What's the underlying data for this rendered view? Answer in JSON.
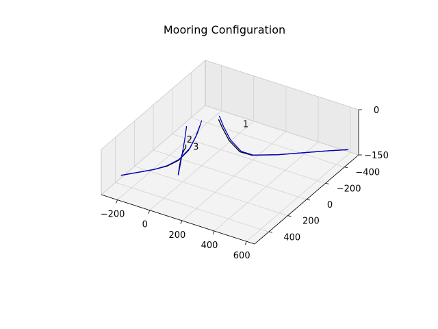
{
  "chart_data": {
    "type": "line",
    "projection": "3d",
    "title": "Mooring Configuration",
    "xlabel": "",
    "ylabel": "",
    "zlabel": "",
    "xlim": [
      -300,
      650
    ],
    "ylim": [
      -550,
      550
    ],
    "zlim": [
      -150,
      0
    ],
    "x_ticks": [
      -200,
      0,
      200,
      400,
      600
    ],
    "y_ticks": [
      -400,
      -200,
      0,
      200,
      400
    ],
    "z_ticks": [
      -150,
      0
    ],
    "x_tick_labels": [
      "−200",
      "0",
      "200",
      "400",
      "600"
    ],
    "y_tick_labels": [
      "−400",
      "−200",
      "0",
      "200",
      "400"
    ],
    "z_tick_labels": [
      "−150",
      "0"
    ],
    "grid": true,
    "series": [
      {
        "color": "#000000",
        "x": [
          52,
          70,
          100,
          150,
          200,
          300,
          400,
          500,
          575
        ],
        "y": [
          -90,
          -100,
          -120,
          -148,
          -190,
          -290,
          -390,
          -490,
          -560
        ],
        "z": [
          -12,
          -40,
          -82,
          -118,
          -132,
          -140,
          -143,
          -146,
          -148
        ]
      },
      {
        "color": "#0000cc",
        "x": [
          55,
          74,
          104,
          154,
          204,
          304,
          404,
          504,
          580
        ],
        "y": [
          -92,
          -104,
          -126,
          -156,
          -195,
          -294,
          -394,
          -494,
          -562
        ],
        "z": [
          0,
          -35,
          -80,
          -118,
          -132,
          -140,
          -143,
          -146,
          -148
        ]
      },
      {
        "color": "#000000",
        "x": [
          -40,
          -40,
          -41,
          -42,
          -42,
          -43
        ],
        "y": [
          100,
          100,
          120,
          140,
          160,
          175
        ],
        "z": [
          -60,
          -70,
          -75,
          -85,
          -110,
          -140
        ]
      },
      {
        "color": "#0000cc",
        "x": [
          -38,
          -38,
          -38,
          -39,
          -39,
          -40
        ],
        "y": [
          95,
          110,
          125,
          140,
          160,
          180
        ],
        "z": [
          0,
          -30,
          -55,
          -80,
          -110,
          -140
        ]
      },
      {
        "color": "#000000",
        "x": [
          -5,
          -20,
          -45,
          -85,
          -130,
          -180,
          -230,
          -270,
          -310
        ],
        "y": [
          10,
          30,
          60,
          100,
          145,
          195,
          245,
          285,
          325
        ],
        "z": [
          -15,
          -50,
          -90,
          -120,
          -135,
          -141,
          -144,
          -146,
          -148
        ]
      },
      {
        "color": "#0000cc",
        "x": [
          0,
          -15,
          -42,
          -84,
          -130,
          -180,
          -230,
          -270,
          -308
        ],
        "y": [
          0,
          20,
          52,
          96,
          142,
          194,
          244,
          284,
          322
        ],
        "z": [
          0,
          -40,
          -85,
          -118,
          -134,
          -141,
          -144,
          -146,
          -148
        ]
      }
    ],
    "annotations": [
      {
        "text": "1",
        "x": 170,
        "y": -175,
        "z": -40
      },
      {
        "text": "2",
        "x": 30,
        "y": 180,
        "z": -20
      },
      {
        "text": "3",
        "x": -30,
        "y": 10,
        "z": -100
      }
    ]
  }
}
